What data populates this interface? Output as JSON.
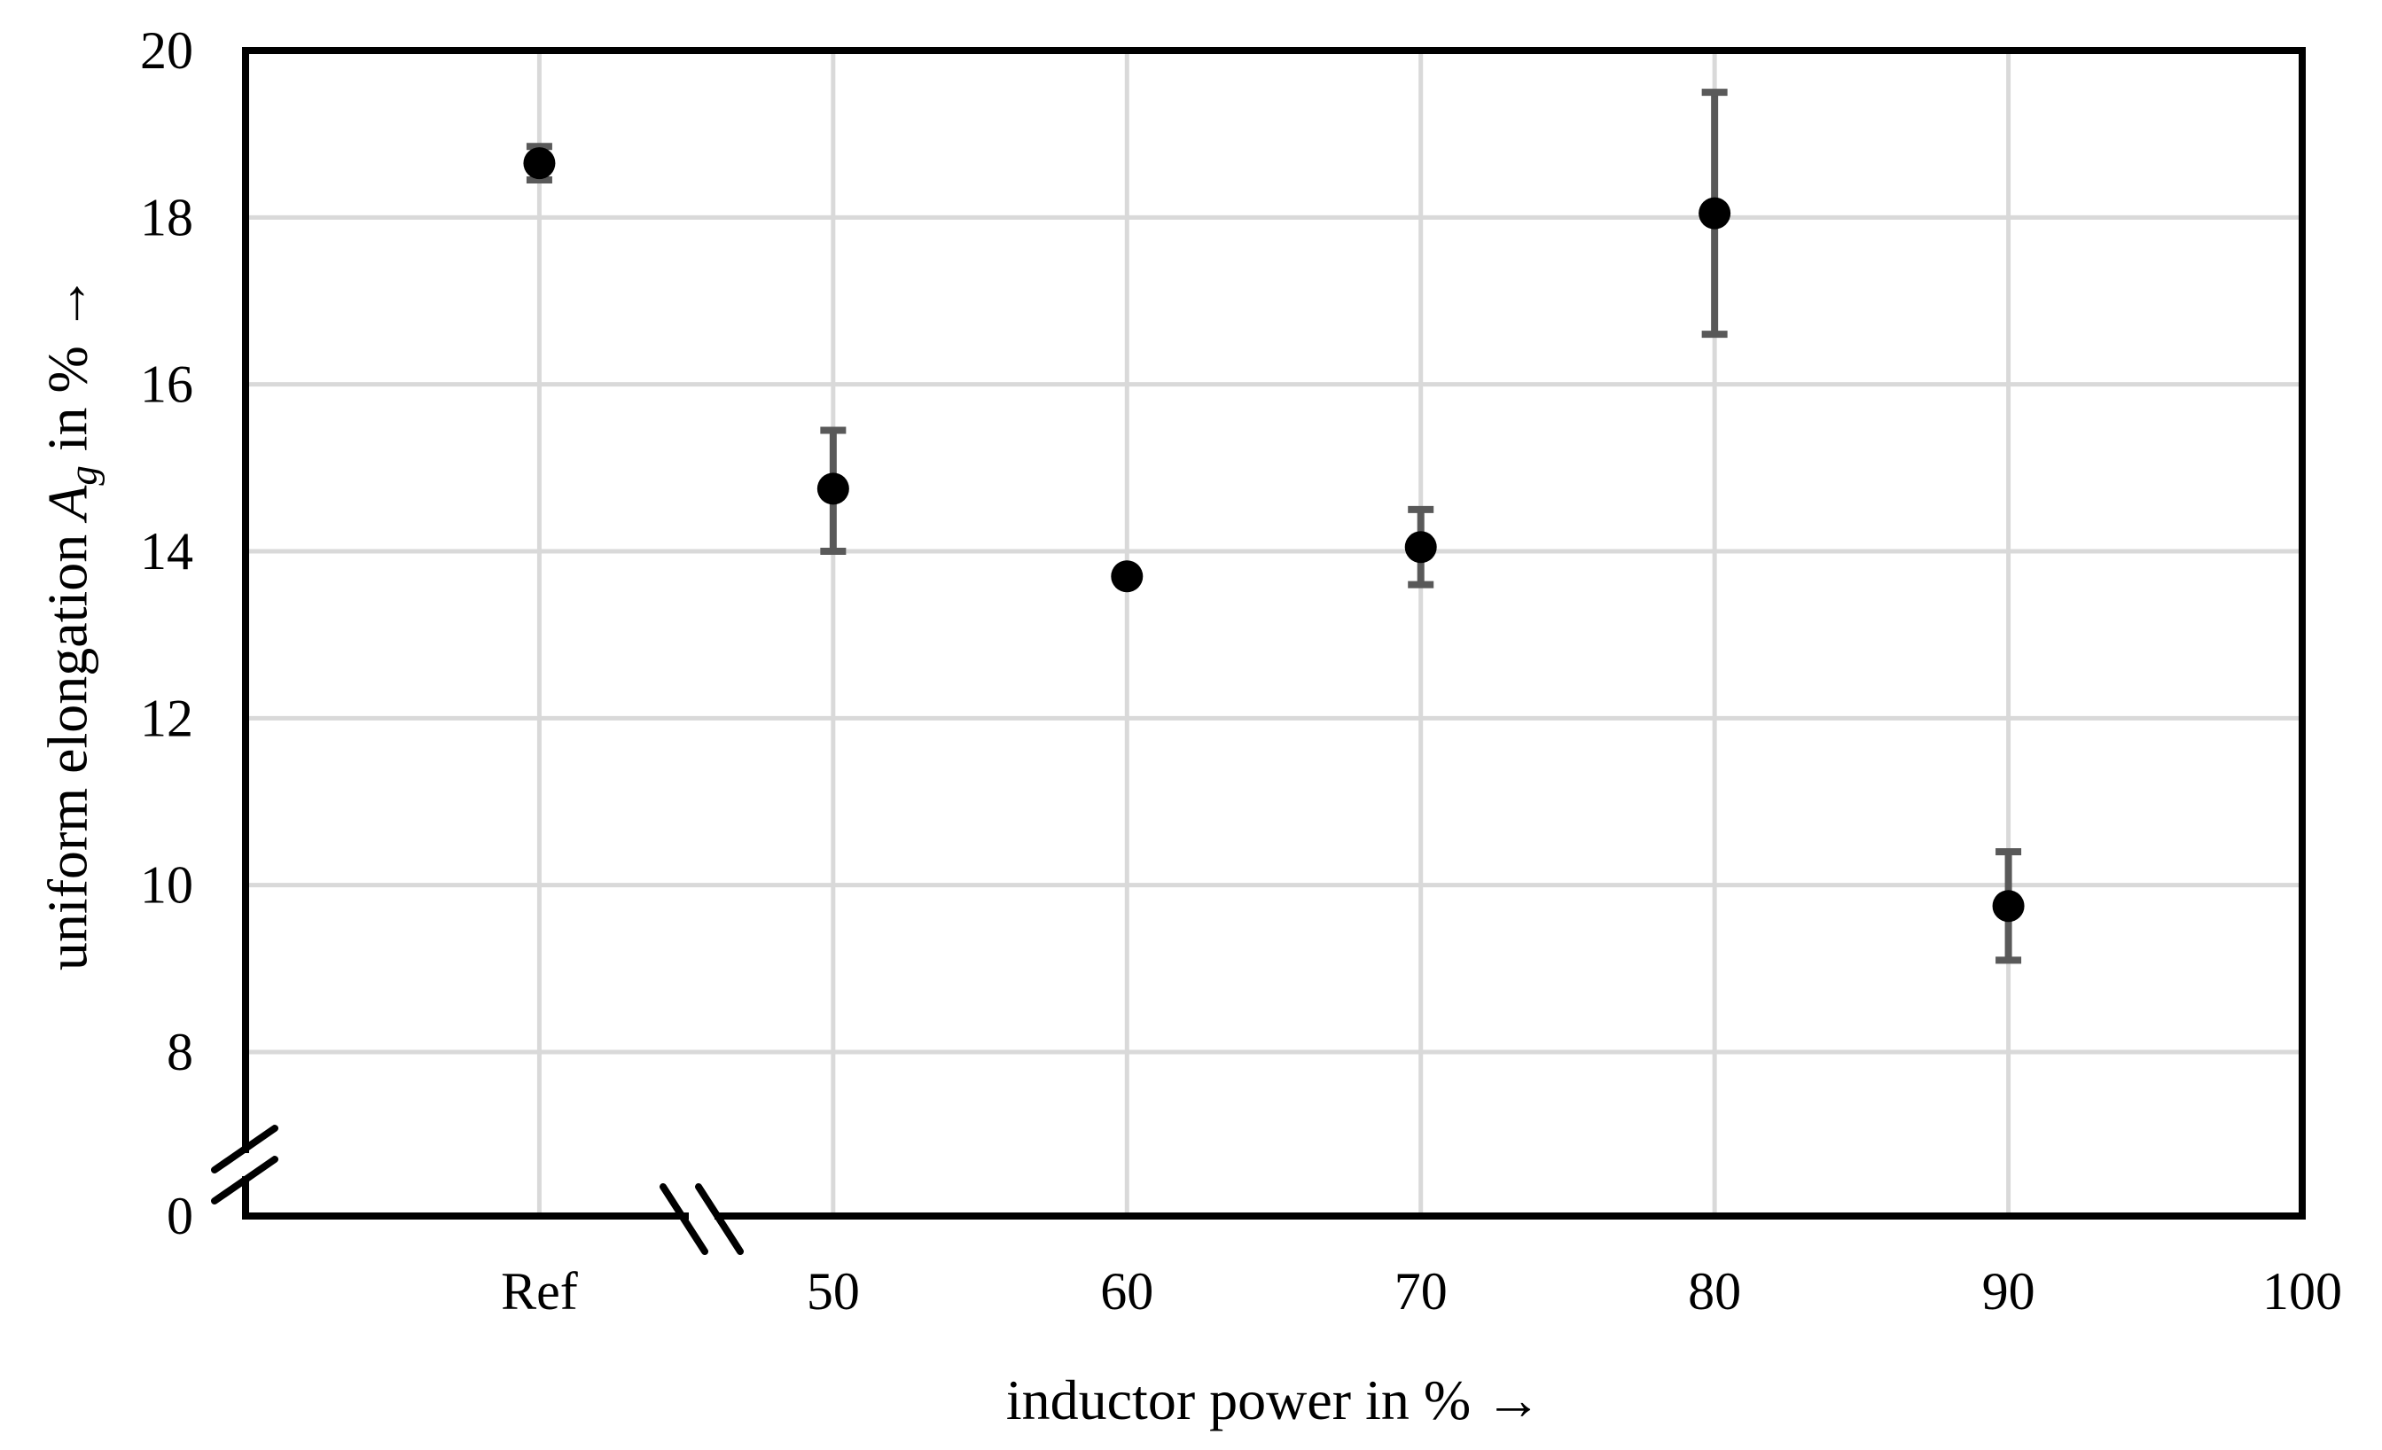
{
  "chart_data": {
    "type": "scatter",
    "title": "",
    "xlabel": "inductor power in % →",
    "ylabel_parts": {
      "prefix": "uniform elongation ",
      "symbol": "A",
      "subscript": "g",
      "suffix": " in % →"
    },
    "categories": [
      "Ref",
      "50",
      "60",
      "70",
      "80",
      "90",
      "100"
    ],
    "series": [
      {
        "name": "uniform elongation",
        "marker": "filled-circle",
        "points": [
          {
            "x": "Ref",
            "y": 18.65,
            "y_low": 18.45,
            "y_high": 18.85
          },
          {
            "x": "50",
            "y": 14.75,
            "y_low": 14.0,
            "y_high": 15.45
          },
          {
            "x": "60",
            "y": 13.7,
            "y_low": 13.7,
            "y_high": 13.7
          },
          {
            "x": "70",
            "y": 14.05,
            "y_low": 13.6,
            "y_high": 14.5
          },
          {
            "x": "80",
            "y": 18.05,
            "y_low": 16.6,
            "y_high": 19.5
          },
          {
            "x": "90",
            "y": 9.75,
            "y_low": 9.1,
            "y_high": 10.4
          }
        ]
      }
    ],
    "y_ticks": [
      0,
      8,
      10,
      12,
      14,
      16,
      18,
      20
    ],
    "ylim": [
      0,
      20
    ],
    "ylim_displayed_after_break": [
      8,
      20
    ],
    "axis_breaks": {
      "y_axis_break_between": [
        0,
        8
      ],
      "x_axis_break_between": [
        "Ref",
        "50"
      ]
    },
    "grid": true,
    "legend": false
  },
  "style": {
    "grid_color": "#D9D9D9",
    "error_bar_color": "#595959",
    "marker_color": "#000000",
    "axis_color": "#000000",
    "background_color": "#FFFFFF",
    "text_color": "#000000"
  }
}
